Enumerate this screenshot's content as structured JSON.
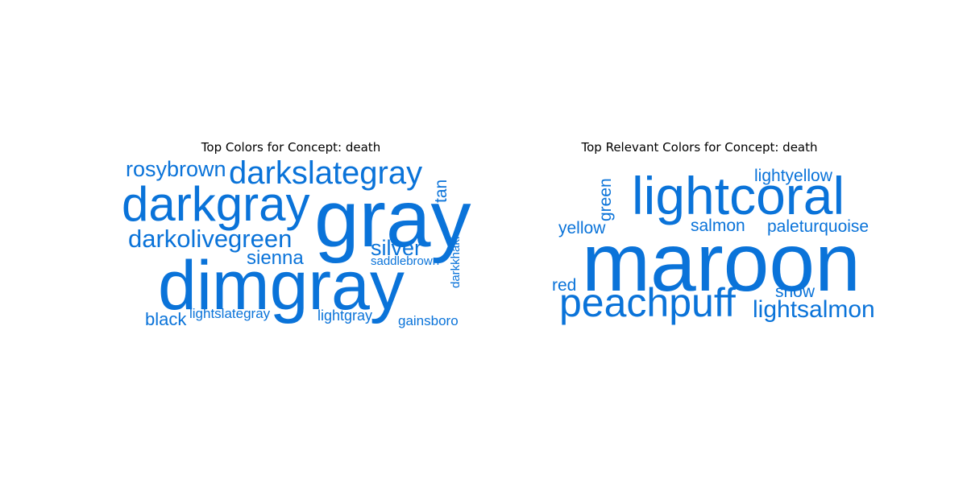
{
  "chart_data": [
    {
      "type": "wordcloud",
      "title": "Top Colors for Concept: death",
      "color": "#0a73d9",
      "words": [
        {
          "text": "dimgray",
          "weight": 1.0
        },
        {
          "text": "gray",
          "weight": 0.95
        },
        {
          "text": "darkgray",
          "weight": 0.6
        },
        {
          "text": "darkslategray",
          "weight": 0.4
        },
        {
          "text": "darkolivegreen",
          "weight": 0.32
        },
        {
          "text": "rosybrown",
          "weight": 0.27
        },
        {
          "text": "silver",
          "weight": 0.27
        },
        {
          "text": "sienna",
          "weight": 0.24
        },
        {
          "text": "black",
          "weight": 0.22
        },
        {
          "text": "tan",
          "weight": 0.2
        },
        {
          "text": "lightgray",
          "weight": 0.18
        },
        {
          "text": "lightslategray",
          "weight": 0.18
        },
        {
          "text": "gainsboro",
          "weight": 0.17
        },
        {
          "text": "saddlebrown",
          "weight": 0.15
        },
        {
          "text": "darkkhaki",
          "weight": 0.15
        }
      ]
    },
    {
      "type": "wordcloud",
      "title": "Top Relevant Colors for Concept: death",
      "color": "#0a73d9",
      "words": [
        {
          "text": "maroon",
          "weight": 1.0
        },
        {
          "text": "lightcoral",
          "weight": 0.65
        },
        {
          "text": "peachpuff",
          "weight": 0.5
        },
        {
          "text": "lightsalmon",
          "weight": 0.3
        },
        {
          "text": "paleturquoise",
          "weight": 0.22
        },
        {
          "text": "lightyellow",
          "weight": 0.22
        },
        {
          "text": "salmon",
          "weight": 0.22
        },
        {
          "text": "snow",
          "weight": 0.22
        },
        {
          "text": "yellow",
          "weight": 0.21
        },
        {
          "text": "green",
          "weight": 0.21
        },
        {
          "text": "red",
          "weight": 0.21
        }
      ]
    }
  ]
}
